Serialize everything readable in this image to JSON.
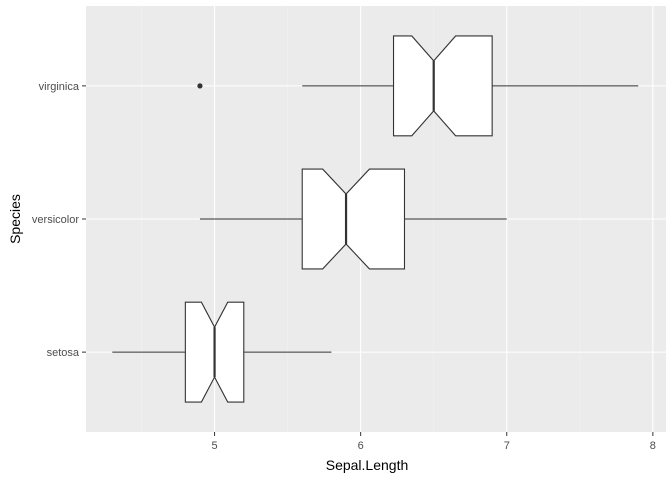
{
  "chart_data": {
    "type": "boxplot",
    "orientation": "horizontal",
    "notched": true,
    "xlabel": "Sepal.Length",
    "ylabel": "Species",
    "xlim": [
      4.12,
      8.09
    ],
    "x_ticks": [
      5,
      6,
      7,
      8
    ],
    "x_tick_labels": [
      "5",
      "6",
      "7",
      "8"
    ],
    "x_minor_ticks": [
      4.5,
      5.5,
      6.5,
      7.5
    ],
    "grid": true,
    "categories": [
      "setosa",
      "versicolor",
      "virginica"
    ],
    "boxes": [
      {
        "category": "setosa",
        "whisker_low": 4.3,
        "q1": 4.8,
        "median": 5.0,
        "q3": 5.2,
        "whisker_high": 5.8,
        "notch_low": 4.91,
        "notch_high": 5.09,
        "outliers": []
      },
      {
        "category": "versicolor",
        "whisker_low": 4.9,
        "q1": 5.6,
        "median": 5.9,
        "q3": 6.3,
        "whisker_high": 7.0,
        "notch_low": 5.74,
        "notch_high": 6.06,
        "outliers": []
      },
      {
        "category": "virginica",
        "whisker_low": 5.6,
        "q1": 6.225,
        "median": 6.5,
        "q3": 6.9,
        "whisker_high": 7.9,
        "notch_low": 6.35,
        "notch_high": 6.65,
        "outliers": [
          4.9
        ]
      }
    ],
    "colors": {
      "panel_background": "#ebebeb",
      "grid_major": "#ffffff",
      "grid_minor": "#f2f2f2",
      "box_fill": "#ffffff",
      "box_stroke": "#333333",
      "outlier": "#333333"
    }
  }
}
